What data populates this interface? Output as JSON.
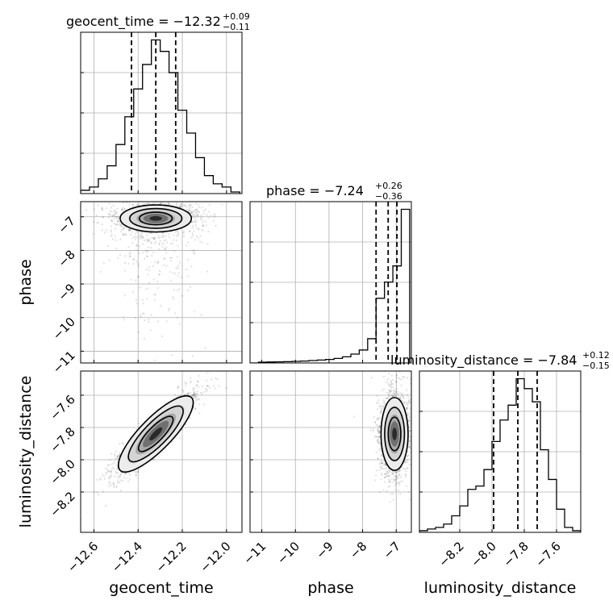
{
  "chart_data": {
    "type": "corner",
    "parameters": [
      "geocent_time",
      "phase",
      "luminosity_distance"
    ],
    "axis_labels": {
      "geocent_time": "geocent_time",
      "phase": "phase",
      "luminosity_distance": "luminosity_distance"
    },
    "ranges": {
      "geocent_time": [
        -12.66,
        -11.93
      ],
      "phase": [
        -11.35,
        -6.55
      ],
      "luminosity_distance": [
        -8.45,
        -7.45
      ]
    },
    "ticks": {
      "geocent_time": [
        -12.6,
        -12.4,
        -12.2,
        -12.0
      ],
      "phase": [
        -11,
        -10,
        -9,
        -8,
        -7
      ],
      "luminosity_distance": [
        -8.2,
        -8.0,
        -7.8,
        -7.6
      ]
    },
    "tick_labels": {
      "geocent_time": [
        "−12.6",
        "−12.4",
        "−12.2",
        "−12.0"
      ],
      "phase": [
        "−11",
        "−10",
        "−9",
        "−8",
        "−7"
      ],
      "luminosity_distance": [
        "−8.2",
        "−8.0",
        "−7.8",
        "−7.6"
      ]
    },
    "titles": {
      "geocent_time": {
        "prefix": "geocent_time = −12.32",
        "plus": "+0.09",
        "minus": "−0.11"
      },
      "phase": {
        "prefix": "phase = −7.24",
        "plus": "+0.26",
        "minus": "−0.36"
      },
      "luminosity_distance": {
        "prefix": "luminosity_distance = −7.84",
        "plus": "+0.12",
        "minus": "−0.15"
      }
    },
    "quantiles": {
      "geocent_time": [
        -12.43,
        -12.32,
        -12.23
      ],
      "phase": [
        -7.6,
        -7.24,
        -6.98
      ],
      "luminosity_distance": [
        -7.99,
        -7.84,
        -7.72
      ]
    },
    "histograms": {
      "geocent_time": {
        "edges": [
          -12.66,
          -12.62,
          -12.58,
          -12.54,
          -12.5,
          -12.46,
          -12.42,
          -12.38,
          -12.34,
          -12.3,
          -12.26,
          -12.22,
          -12.18,
          -12.14,
          -12.1,
          -12.06,
          -12.02,
          -11.98,
          -11.94
        ],
        "counts": [
          0.02,
          0.04,
          0.09,
          0.17,
          0.3,
          0.47,
          0.64,
          0.79,
          0.94,
          0.87,
          0.74,
          0.51,
          0.37,
          0.22,
          0.11,
          0.06,
          0.04,
          0.01
        ]
      },
      "phase": {
        "edges": [
          -11.35,
          -11.1,
          -10.85,
          -10.6,
          -10.35,
          -10.1,
          -9.85,
          -9.6,
          -9.35,
          -9.1,
          -8.85,
          -8.6,
          -8.35,
          -8.1,
          -7.85,
          -7.6,
          -7.35,
          -7.1,
          -6.85,
          -6.6
        ],
        "counts": [
          0.0,
          0.005,
          0.006,
          0.007,
          0.008,
          0.01,
          0.012,
          0.015,
          0.018,
          0.022,
          0.028,
          0.038,
          0.055,
          0.08,
          0.15,
          0.4,
          0.5,
          0.6,
          0.95
        ]
      },
      "luminosity_distance": {
        "edges": [
          -8.45,
          -8.4,
          -8.35,
          -8.3,
          -8.25,
          -8.2,
          -8.15,
          -8.1,
          -8.05,
          -8.0,
          -7.95,
          -7.9,
          -7.85,
          -7.8,
          -7.75,
          -7.7,
          -7.65,
          -7.6,
          -7.55,
          -7.5,
          -7.45
        ],
        "counts": [
          0.01,
          0.02,
          0.03,
          0.05,
          0.1,
          0.16,
          0.26,
          0.28,
          0.38,
          0.55,
          0.68,
          0.77,
          0.93,
          0.87,
          0.79,
          0.5,
          0.32,
          0.14,
          0.03,
          0.01
        ]
      }
    },
    "joint_2d": [
      {
        "x": "geocent_time",
        "y": "phase",
        "mean": [
          -12.32,
          -7.05
        ],
        "std": [
          0.1,
          0.25
        ],
        "corr": 0.05,
        "tail": "lower phase values extend to about −11"
      },
      {
        "x": "geocent_time",
        "y": "luminosity_distance",
        "mean": [
          -12.32,
          -7.84
        ],
        "std": [
          0.1,
          0.14
        ],
        "corr": 0.92
      },
      {
        "x": "phase",
        "y": "luminosity_distance",
        "mean": [
          -7.05,
          -7.84
        ],
        "std": [
          0.25,
          0.14
        ],
        "corr": 0.0
      }
    ],
    "grid": true
  }
}
